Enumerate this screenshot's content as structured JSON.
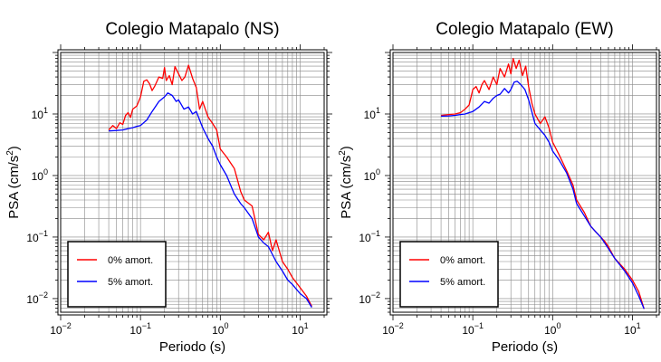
{
  "chart_data": [
    {
      "type": "line",
      "title": "Colegio Matapalo (NS)",
      "xlabel": "Periodo (s)",
      "ylabel_main": "PSA (cm/s",
      "ylabel_sup": "2",
      "ylabel_end": ")",
      "xscale": "log",
      "yscale": "log",
      "xlim": [
        0.01,
        20
      ],
      "ylim": [
        0.006,
        100
      ],
      "grid": true,
      "legend_position": "bottom-left",
      "x_ticks": [
        {
          "base": "10",
          "exp": "−2"
        },
        {
          "base": "10",
          "exp": "−1"
        },
        {
          "base": "10",
          "exp": "0"
        },
        {
          "base": "10",
          "exp": "1"
        }
      ],
      "y_ticks": [
        {
          "base": "10",
          "exp": "−2"
        },
        {
          "base": "10",
          "exp": "−1"
        },
        {
          "base": "10",
          "exp": "0"
        },
        {
          "base": "10",
          "exp": "1"
        }
      ],
      "series": [
        {
          "name": "0% amort.",
          "color": "#ff0000",
          "x": [
            0.04,
            0.045,
            0.05,
            0.055,
            0.06,
            0.065,
            0.07,
            0.075,
            0.08,
            0.09,
            0.1,
            0.11,
            0.12,
            0.13,
            0.14,
            0.15,
            0.17,
            0.19,
            0.2,
            0.21,
            0.23,
            0.25,
            0.27,
            0.3,
            0.33,
            0.36,
            0.4,
            0.45,
            0.5,
            0.55,
            0.6,
            0.7,
            0.8,
            0.9,
            1.0,
            1.2,
            1.5,
            1.8,
            2.0,
            2.5,
            3.0,
            3.5,
            4.0,
            4.5,
            5.0,
            6.0,
            7.0,
            8.0,
            10.0,
            12.0,
            14.0
          ],
          "y": [
            5.5,
            6.5,
            5.8,
            7.2,
            6.8,
            9.5,
            10.5,
            8.8,
            12.0,
            13.5,
            19.0,
            34.0,
            36.0,
            31.0,
            24.0,
            28.0,
            40.0,
            38.0,
            57.0,
            35.0,
            42.0,
            30.0,
            59.0,
            45.0,
            35.0,
            40.0,
            62.0,
            38.0,
            27.0,
            12.0,
            16.0,
            9.0,
            7.0,
            5.5,
            2.7,
            2.0,
            1.3,
            0.55,
            0.4,
            0.32,
            0.11,
            0.09,
            0.12,
            0.06,
            0.09,
            0.04,
            0.03,
            0.022,
            0.015,
            0.011,
            0.0075
          ]
        },
        {
          "name": "5% amort.",
          "color": "#0000ff",
          "x": [
            0.04,
            0.05,
            0.06,
            0.07,
            0.08,
            0.09,
            0.1,
            0.12,
            0.14,
            0.17,
            0.2,
            0.22,
            0.25,
            0.28,
            0.3,
            0.35,
            0.4,
            0.45,
            0.5,
            0.6,
            0.7,
            0.8,
            0.9,
            1.0,
            1.2,
            1.5,
            1.8,
            2.0,
            2.5,
            3.0,
            3.5,
            4.0,
            5.0,
            6.0,
            7.0,
            8.0,
            10.0,
            12.0,
            14.0
          ],
          "y": [
            5.3,
            5.4,
            5.5,
            5.8,
            6.0,
            6.3,
            6.5,
            8.0,
            11.0,
            16.0,
            19.0,
            22.0,
            20.0,
            16.0,
            17.0,
            12.0,
            13.0,
            10.0,
            11.0,
            6.0,
            4.0,
            3.0,
            2.0,
            1.5,
            1.0,
            0.5,
            0.35,
            0.3,
            0.2,
            0.1,
            0.08,
            0.07,
            0.04,
            0.028,
            0.02,
            0.017,
            0.012,
            0.01,
            0.0072
          ]
        }
      ]
    },
    {
      "type": "line",
      "title": "Colegio Matapalo (EW)",
      "xlabel": "Periodo (s)",
      "ylabel_main": "PSA (cm/s",
      "ylabel_sup": "2",
      "ylabel_end": ")",
      "xscale": "log",
      "yscale": "log",
      "xlim": [
        0.01,
        20
      ],
      "ylim": [
        0.006,
        100
      ],
      "grid": true,
      "legend_position": "bottom-left",
      "x_ticks": [
        {
          "base": "10",
          "exp": "−2"
        },
        {
          "base": "10",
          "exp": "−1"
        },
        {
          "base": "10",
          "exp": "0"
        },
        {
          "base": "10",
          "exp": "1"
        }
      ],
      "y_ticks": [
        {
          "base": "10",
          "exp": "−2"
        },
        {
          "base": "10",
          "exp": "−1"
        },
        {
          "base": "10",
          "exp": "0"
        },
        {
          "base": "10",
          "exp": "1"
        }
      ],
      "series": [
        {
          "name": "0% amort.",
          "color": "#ff0000",
          "x": [
            0.04,
            0.05,
            0.06,
            0.07,
            0.08,
            0.09,
            0.1,
            0.11,
            0.12,
            0.13,
            0.14,
            0.16,
            0.18,
            0.2,
            0.22,
            0.25,
            0.28,
            0.3,
            0.32,
            0.35,
            0.38,
            0.42,
            0.46,
            0.5,
            0.55,
            0.6,
            0.7,
            0.8,
            0.9,
            1.0,
            1.2,
            1.5,
            1.8,
            2.0,
            2.5,
            3.0,
            3.5,
            4.0,
            4.5,
            5.0,
            6.0,
            8.0,
            10.0,
            12.0,
            14.0
          ],
          "y": [
            9.5,
            9.8,
            10.0,
            10.5,
            12.0,
            14.0,
            25.0,
            28.0,
            22.0,
            30.0,
            35.0,
            25.0,
            40.0,
            30.0,
            55.0,
            40.0,
            65.0,
            45.0,
            80.0,
            55.0,
            75.0,
            42.0,
            60.0,
            28.0,
            15.0,
            10.0,
            7.0,
            9.0,
            6.0,
            3.5,
            2.2,
            1.2,
            0.7,
            0.4,
            0.25,
            0.15,
            0.12,
            0.1,
            0.085,
            0.07,
            0.045,
            0.03,
            0.02,
            0.013,
            0.0068
          ]
        },
        {
          "name": "5% amort.",
          "color": "#0000ff",
          "x": [
            0.04,
            0.05,
            0.06,
            0.07,
            0.08,
            0.09,
            0.1,
            0.12,
            0.14,
            0.16,
            0.18,
            0.2,
            0.22,
            0.25,
            0.28,
            0.3,
            0.33,
            0.36,
            0.4,
            0.45,
            0.5,
            0.6,
            0.7,
            0.8,
            0.9,
            1.0,
            1.2,
            1.5,
            1.8,
            2.0,
            2.5,
            3.0,
            3.5,
            4.0,
            5.0,
            6.0,
            8.0,
            10.0,
            12.0,
            14.0
          ],
          "y": [
            9.2,
            9.3,
            9.5,
            9.8,
            10.0,
            10.5,
            11.0,
            13.0,
            16.0,
            15.0,
            18.0,
            20.0,
            21.0,
            26.0,
            22.0,
            25.0,
            33.0,
            34.0,
            30.0,
            25.0,
            17.0,
            7.0,
            5.5,
            4.5,
            3.5,
            2.5,
            1.8,
            1.1,
            0.6,
            0.35,
            0.22,
            0.15,
            0.12,
            0.1,
            0.065,
            0.045,
            0.028,
            0.018,
            0.011,
            0.0068
          ]
        }
      ]
    }
  ]
}
